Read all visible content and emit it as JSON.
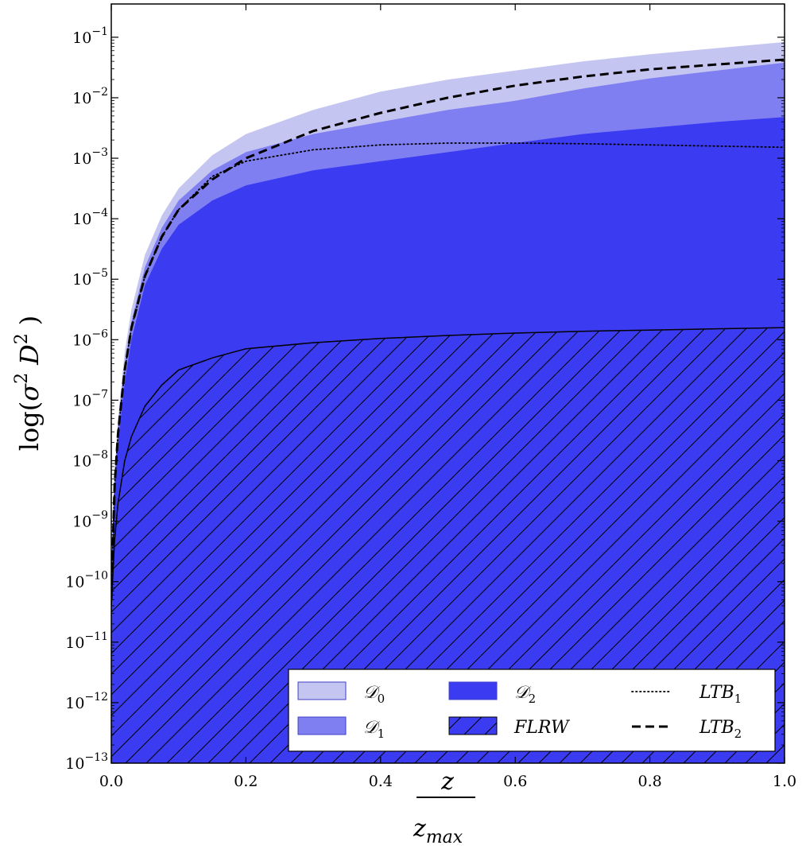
{
  "chart_data": {
    "type": "area",
    "title": "",
    "xlabel": {
      "numerator": "z",
      "denominator_base": "z",
      "denominator_sub": "max"
    },
    "ylabel": {
      "prefix": "log(",
      "sigma": "σ",
      "sup1": "2",
      "d": "D",
      "sup2": "2",
      "suffix": ")"
    },
    "xlim": [
      0.0,
      1.0
    ],
    "ylim_log10": [
      -13,
      -0.45
    ],
    "yscale": "log",
    "grid": false,
    "legend_position": "lower-right",
    "x_ticks": [
      "0.0",
      "0.2",
      "0.4",
      "0.6",
      "0.8",
      "1.0"
    ],
    "x_tick_values": [
      0.0,
      0.2,
      0.4,
      0.6,
      0.8,
      1.0
    ],
    "y_ticks": [
      {
        "exp": -1,
        "base": "10",
        "sup": "−1"
      },
      {
        "exp": -2,
        "base": "10",
        "sup": "−2"
      },
      {
        "exp": -3,
        "base": "10",
        "sup": "−3"
      },
      {
        "exp": -4,
        "base": "10",
        "sup": "−4"
      },
      {
        "exp": -5,
        "base": "10",
        "sup": "−5"
      },
      {
        "exp": -6,
        "base": "10",
        "sup": "−6"
      },
      {
        "exp": -7,
        "base": "10",
        "sup": "−7"
      },
      {
        "exp": -8,
        "base": "10",
        "sup": "−8"
      },
      {
        "exp": -9,
        "base": "10",
        "sup": "−9"
      },
      {
        "exp": -10,
        "base": "10",
        "sup": "−10"
      },
      {
        "exp": -11,
        "base": "10",
        "sup": "−11"
      },
      {
        "exp": -12,
        "base": "10",
        "sup": "−12"
      },
      {
        "exp": -13,
        "base": "10",
        "sup": "−13"
      }
    ],
    "x": [
      0.0,
      0.005,
      0.01,
      0.02,
      0.03,
      0.05,
      0.075,
      0.1,
      0.15,
      0.2,
      0.3,
      0.4,
      0.5,
      0.6,
      0.7,
      0.8,
      0.9,
      1.0
    ],
    "series": [
      {
        "name": "𝒟",
        "sub": "0",
        "kind": "fill",
        "color": "#c5c5f2",
        "upper_log10": [
          -9.8,
          -8.2,
          -7.3,
          -6.2,
          -5.5,
          -4.6,
          -3.95,
          -3.5,
          -2.95,
          -2.6,
          -2.2,
          -1.9,
          -1.7,
          -1.55,
          -1.4,
          -1.28,
          -1.18,
          -1.08
        ]
      },
      {
        "name": "𝒟",
        "sub": "1",
        "kind": "fill",
        "color": "#7f7ff2",
        "upper_log10": [
          -9.8,
          -8.3,
          -7.45,
          -6.4,
          -5.7,
          -4.8,
          -4.15,
          -3.7,
          -3.2,
          -2.9,
          -2.6,
          -2.4,
          -2.2,
          -2.05,
          -1.85,
          -1.68,
          -1.55,
          -1.42
        ]
      },
      {
        "name": "𝒟",
        "sub": "2",
        "kind": "fill",
        "color": "#3b3bf2",
        "upper_log10": [
          -9.8,
          -8.5,
          -7.7,
          -6.7,
          -6.0,
          -5.1,
          -4.5,
          -4.1,
          -3.7,
          -3.45,
          -3.2,
          -3.05,
          -2.9,
          -2.75,
          -2.6,
          -2.5,
          -2.4,
          -2.32
        ]
      },
      {
        "name": "FLRW",
        "sub": "",
        "kind": "hatch",
        "color": "#3b3bf2",
        "upper_log10": [
          -10.4,
          -9.3,
          -8.7,
          -8.0,
          -7.6,
          -7.1,
          -6.75,
          -6.5,
          -6.3,
          -6.15,
          -6.05,
          -5.98,
          -5.93,
          -5.89,
          -5.86,
          -5.84,
          -5.82,
          -5.8
        ]
      },
      {
        "name": "LTB",
        "sub": "1",
        "kind": "dotted",
        "color": "#000000",
        "values_log10": [
          -10.3,
          -8.4,
          -7.55,
          -6.5,
          -5.8,
          -4.95,
          -4.3,
          -3.85,
          -3.3,
          -3.05,
          -2.86,
          -2.78,
          -2.75,
          -2.75,
          -2.76,
          -2.78,
          -2.8,
          -2.82
        ]
      },
      {
        "name": "LTB",
        "sub": "2",
        "kind": "dashed",
        "color": "#000000",
        "values_log10": [
          -10.3,
          -8.4,
          -7.55,
          -6.5,
          -5.8,
          -4.95,
          -4.3,
          -3.85,
          -3.35,
          -3.0,
          -2.55,
          -2.25,
          -2.0,
          -1.8,
          -1.65,
          -1.53,
          -1.45,
          -1.37
        ]
      }
    ]
  },
  "legend": {
    "items": [
      {
        "name": "𝒟",
        "sub": "0",
        "kind": "fill",
        "color": "#c5c5f2"
      },
      {
        "name": "𝒟",
        "sub": "2",
        "kind": "fill",
        "color": "#3b3bf2"
      },
      {
        "name": "LTB",
        "sub": "1",
        "kind": "dotted",
        "color": "#000000"
      },
      {
        "name": "𝒟",
        "sub": "1",
        "kind": "fill",
        "color": "#7f7ff2"
      },
      {
        "name": "FLRW",
        "sub": "",
        "kind": "hatch",
        "color": "#3b3bf2"
      },
      {
        "name": "LTB",
        "sub": "2",
        "kind": "dashed",
        "color": "#000000"
      }
    ]
  }
}
